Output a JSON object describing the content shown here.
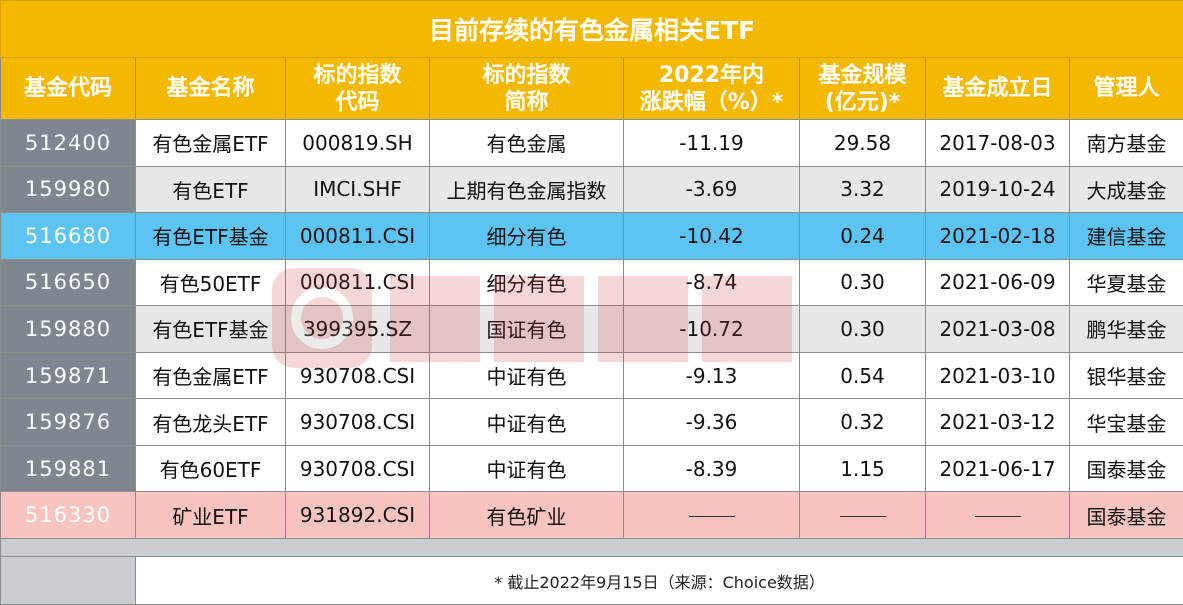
{
  "title": "目前存续的有色金属相关ETF",
  "headers": [
    [
      "基金代码"
    ],
    [
      "基金名称"
    ],
    [
      "标的指数",
      "代码"
    ],
    [
      "标的指数",
      "简称"
    ],
    [
      "2022年内",
      "涨跌幅（%）*"
    ],
    [
      "基金规模",
      "(亿元)*"
    ],
    [
      "基金成立日"
    ],
    [
      "管理人"
    ]
  ],
  "rows": [
    {
      "style": "plain",
      "code": "512400",
      "name": "有色金属ETF",
      "index_code": "000819.SH",
      "index_name": "有色金属",
      "change": "-11.19",
      "scale": "29.58",
      "date": "2017-08-03",
      "manager": "南方基金"
    },
    {
      "style": "alt",
      "code": "159980",
      "name": "有色ETF",
      "index_code": "IMCI.SHF",
      "index_name": "上期有色金属指数",
      "change": "-3.69",
      "scale": "3.32",
      "date": "2019-10-24",
      "manager": "大成基金"
    },
    {
      "style": "hl",
      "code": "516680",
      "name": "有色ETF基金",
      "index_code": "000811.CSI",
      "index_name": "细分有色",
      "change": "-10.42",
      "scale": "0.24",
      "date": "2021-02-18",
      "manager": "建信基金"
    },
    {
      "style": "plain",
      "code": "516650",
      "name": "有色50ETF",
      "index_code": "000811.CSI",
      "index_name": "细分有色",
      "change": "-8.74",
      "scale": "0.30",
      "date": "2021-06-09",
      "manager": "华夏基金"
    },
    {
      "style": "alt",
      "code": "159880",
      "name": "有色ETF基金",
      "index_code": "399395.SZ",
      "index_name": "国证有色",
      "change": "-10.72",
      "scale": "0.30",
      "date": "2021-03-08",
      "manager": "鹏华基金"
    },
    {
      "style": "plain",
      "code": "159871",
      "name": "有色金属ETF",
      "index_code": "930708.CSI",
      "index_name": "中证有色",
      "change": "-9.13",
      "scale": "0.54",
      "date": "2021-03-10",
      "manager": "银华基金"
    },
    {
      "style": "plain",
      "code": "159876",
      "name": "有色龙头ETF",
      "index_code": "930708.CSI",
      "index_name": "中证有色",
      "change": "-9.36",
      "scale": "0.32",
      "date": "2021-03-12",
      "manager": "华宝基金"
    },
    {
      "style": "plain",
      "code": "159881",
      "name": "有色60ETF",
      "index_code": "930708.CSI",
      "index_name": "中证有色",
      "change": "-8.39",
      "scale": "1.15",
      "date": "2021-06-17",
      "manager": "国泰基金"
    },
    {
      "style": "pink",
      "code": "516330",
      "name": "矿业ETF",
      "index_code": "931892.CSI",
      "index_name": "有色矿业",
      "change": "",
      "scale": "",
      "date": "",
      "manager": "国泰基金"
    }
  ],
  "note": "* 截止2022年9月15日（来源：Choice数据）",
  "colors": {
    "header_bg": "#f5b800",
    "code_cell_bg": "#7f8690",
    "highlight_row": "#5bc4f2",
    "pink_row": "#f9c4c0",
    "alt_row": "#e7e7e7"
  },
  "watermark_icon": "logo-watermark-icon"
}
